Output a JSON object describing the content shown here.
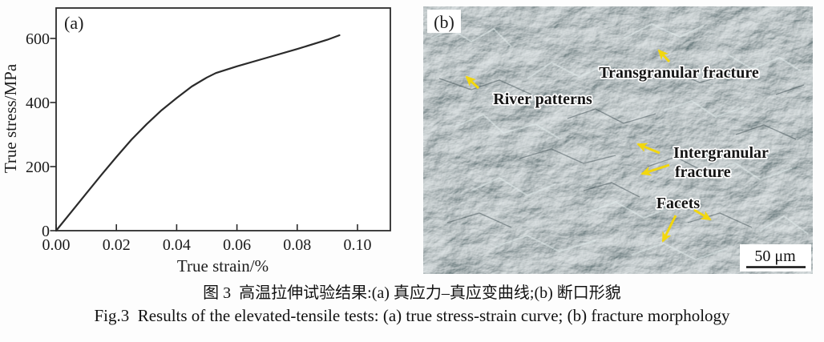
{
  "figure": {
    "caption_zh": "图 3  高温拉伸试验结果:(a) 真应力–真应变曲线;(b) 断口形貌",
    "caption_en": "Fig.3  Results of the elevated-tensile tests: (a) true stress-strain curve; (b) fracture morphology"
  },
  "panel_a": {
    "label": "(a)",
    "xlabel": "True strain/%",
    "ylabel": "True stress/MPa",
    "x_tick_labels": [
      "0.00",
      "0.02",
      "0.04",
      "0.06",
      "0.08",
      "0.10"
    ],
    "y_tick_labels": [
      "0",
      "200",
      "400",
      "600"
    ]
  },
  "panel_b": {
    "label": "(b)",
    "annotations": {
      "transgranular": "Transgranular fracture",
      "river": "River patterns",
      "intergranular_line1": "Intergranular",
      "intergranular_line2": "fracture",
      "facets": "Facets",
      "scale_bar": "50 μm"
    },
    "colors": {
      "arrow": "#f2d70e",
      "sem_base": "#7e8d8f",
      "annotation_text": "#161616",
      "annotation_halo": "#ffffff"
    }
  },
  "chart_data": {
    "type": "line",
    "title": "",
    "xlabel": "True strain/%",
    "ylabel": "True stress/MPa",
    "xlim": [
      0,
      0.1109
    ],
    "ylim": [
      0,
      695
    ],
    "x_ticks": [
      0,
      0.02,
      0.04,
      0.06,
      0.08,
      0.1
    ],
    "y_ticks": [
      0,
      200,
      400,
      600
    ],
    "grid": false,
    "legend": "none",
    "series": [
      {
        "name": "true stress-strain curve",
        "x": [
          0,
          0.005,
          0.01,
          0.015,
          0.02,
          0.025,
          0.03,
          0.035,
          0.04,
          0.045,
          0.05,
          0.053,
          0.06,
          0.07,
          0.08,
          0.09,
          0.094
        ],
        "y": [
          0,
          58,
          116,
          174,
          230,
          284,
          332,
          376,
          414,
          450,
          478,
          492,
          513,
          540,
          567,
          596,
          610
        ]
      }
    ]
  }
}
